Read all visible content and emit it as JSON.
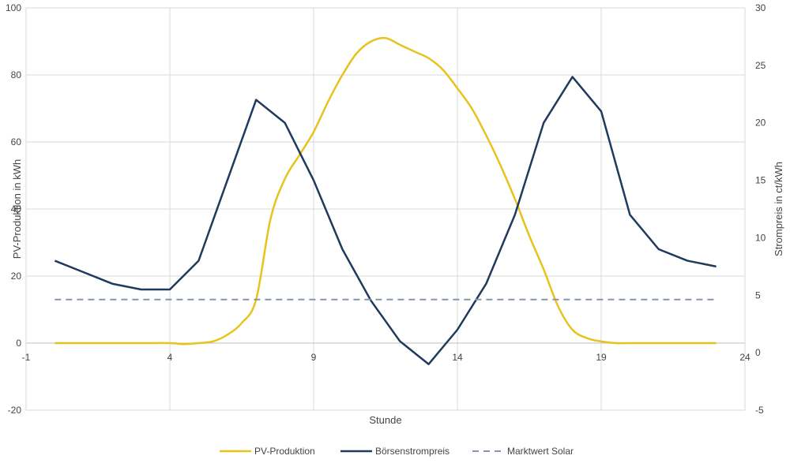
{
  "chart_data": {
    "type": "line",
    "xlabel": "Stunde",
    "ylabel_left": "PV-Produktion in kWh",
    "ylabel_right": "Strompreis in ct/kWh",
    "xlim": [
      -1,
      24
    ],
    "ylim_left": [
      -20,
      100
    ],
    "ylim_right": [
      -5,
      30
    ],
    "x_ticks": [
      -1,
      4,
      9,
      14,
      19,
      24
    ],
    "y_ticks_left": [
      -20,
      0,
      20,
      40,
      60,
      80,
      100
    ],
    "y_ticks_right": [
      -5,
      0,
      5,
      10,
      15,
      20,
      25,
      30
    ],
    "grid": "vertical and horizontal",
    "legend_position": "bottom",
    "series": [
      {
        "name": "PV-Produktion",
        "axis": "left",
        "color": "#e8c21d",
        "style": "solid",
        "x": [
          0,
          1,
          2,
          3,
          4,
          4.5,
          5,
          5.5,
          6,
          6.5,
          7,
          7.5,
          8,
          8.5,
          9,
          9.5,
          10,
          10.5,
          11,
          11.5,
          12,
          12.5,
          13,
          13.5,
          14,
          14.5,
          15,
          15.5,
          16,
          16.5,
          17,
          17.5,
          18,
          18.5,
          19,
          19.5,
          20,
          21,
          22,
          23
        ],
        "values": [
          0,
          0,
          0,
          0,
          0,
          -0.3,
          0,
          0.5,
          2.5,
          6,
          13,
          37,
          49,
          56,
          63,
          72,
          80,
          86.5,
          90,
          91,
          89,
          87,
          85,
          81.5,
          76,
          70,
          62,
          53,
          43,
          32,
          22,
          11,
          4,
          1.5,
          0.5,
          0,
          0,
          0,
          0,
          0
        ]
      },
      {
        "name": "Börsenstrompreis",
        "axis": "right",
        "color": "#1f3a5c",
        "style": "solid",
        "x": [
          0,
          1,
          2,
          3,
          4,
          5,
          6,
          7,
          8,
          9,
          10,
          11,
          12,
          13,
          14,
          15,
          16,
          17,
          18,
          19,
          20,
          21,
          22,
          23
        ],
        "values": [
          8,
          7,
          6,
          5.5,
          5.5,
          8,
          15,
          22,
          20,
          15,
          9,
          4.5,
          1,
          -1,
          2,
          6,
          12,
          20,
          24,
          21,
          12,
          9,
          8,
          7.5
        ]
      },
      {
        "name": "Marktwert Solar",
        "axis": "left",
        "color": "#8496b0",
        "style": "dashed",
        "x": [
          0,
          23
        ],
        "values": [
          13,
          13
        ]
      }
    ]
  }
}
